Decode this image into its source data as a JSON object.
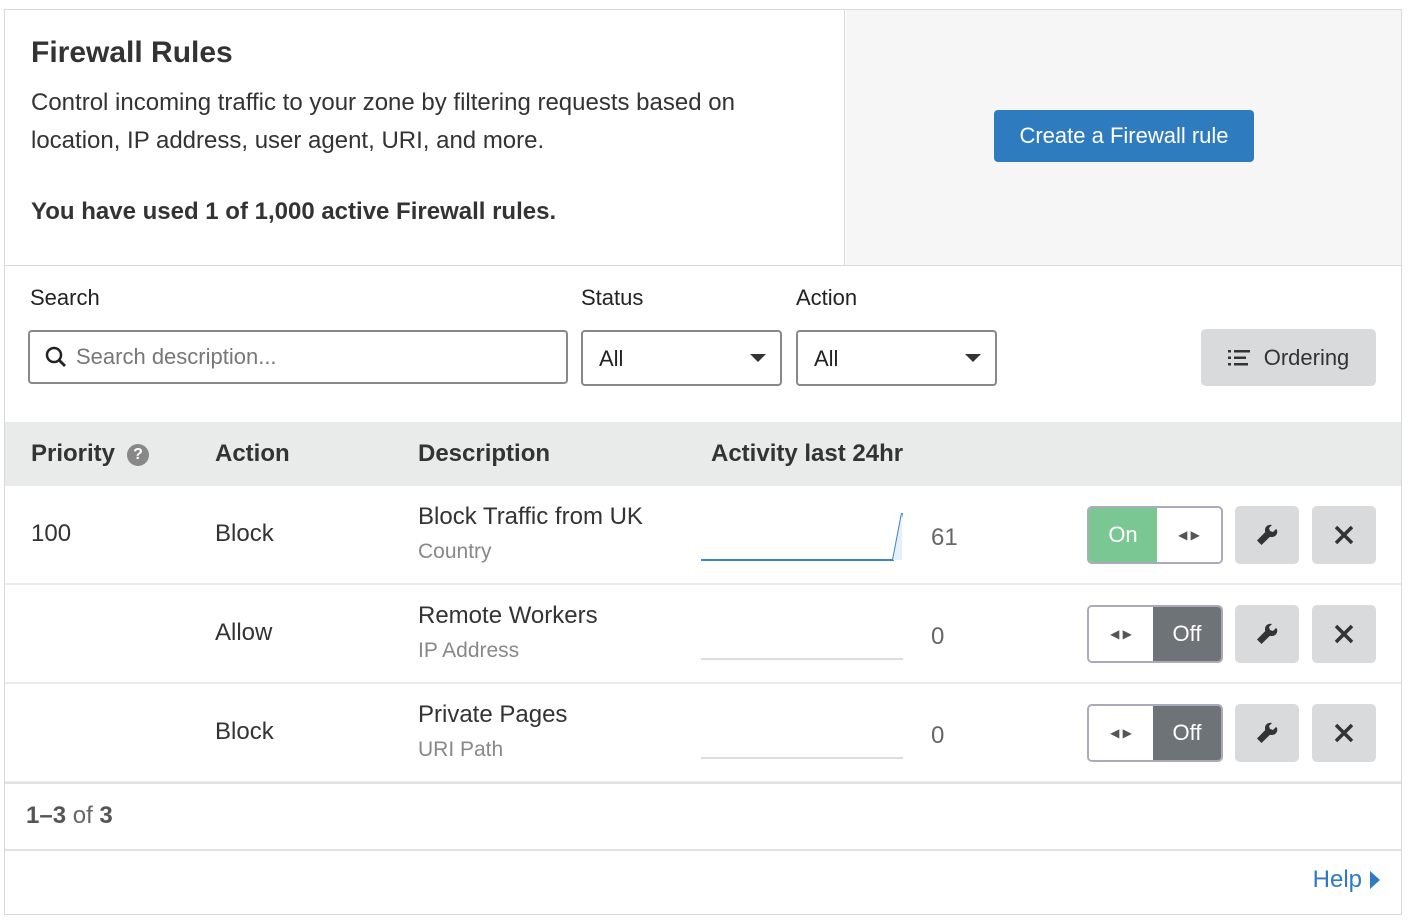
{
  "header": {
    "title": "Firewall Rules",
    "description": "Control incoming traffic to your zone by filtering requests based on location, IP address, user agent, URI, and more.",
    "usage": "You have used 1 of 1,000 active Firewall rules.",
    "create_button": "Create a Firewall rule"
  },
  "filters": {
    "search_label": "Search",
    "search_placeholder": "Search description...",
    "status_label": "Status",
    "status_value": "All",
    "action_label": "Action",
    "action_value": "All",
    "ordering_button": "Ordering"
  },
  "table": {
    "columns": [
      "Priority",
      "Action",
      "Description",
      "Activity last 24hr"
    ],
    "rows": [
      {
        "priority": "100",
        "action": "Block",
        "description": "Block Traffic from UK",
        "type": "Country",
        "activity": "61",
        "status": "On"
      },
      {
        "priority": "",
        "action": "Allow",
        "description": "Remote Workers",
        "type": "IP Address",
        "activity": "0",
        "status": "Off"
      },
      {
        "priority": "",
        "action": "Block",
        "description": "Private Pages",
        "type": "URI Path",
        "activity": "0",
        "status": "Off"
      }
    ]
  },
  "pagination": {
    "range": "1–3",
    "of": "of",
    "total": "3"
  },
  "help_link": "Help",
  "colors": {
    "primary": "#2f7bbf",
    "on": "#7bc794",
    "off": "#6e7378"
  }
}
